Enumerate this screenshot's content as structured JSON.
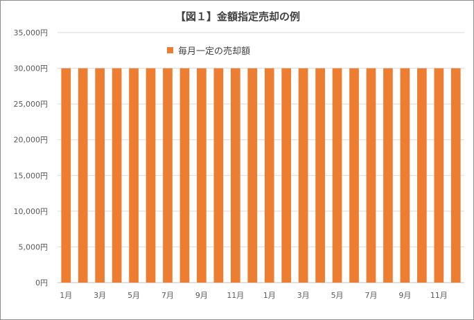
{
  "chart_data": {
    "type": "bar",
    "title": "【図１】金額指定売却の例",
    "xlabel": "",
    "ylabel": "",
    "ylim": [
      0,
      35000
    ],
    "yticks": [
      0,
      5000,
      10000,
      15000,
      20000,
      25000,
      30000,
      35000
    ],
    "ytick_labels": [
      "0円",
      "5,000円",
      "10,000円",
      "15,000円",
      "20,000円",
      "25,000円",
      "30,000円",
      "35,000円"
    ],
    "categories": [
      "1月",
      "2月",
      "3月",
      "4月",
      "5月",
      "6月",
      "7月",
      "8月",
      "9月",
      "10月",
      "11月",
      "12月",
      "1月",
      "2月",
      "3月",
      "4月",
      "5月",
      "6月",
      "7月",
      "8月",
      "9月",
      "10月",
      "11月",
      "12月"
    ],
    "visible_xtick_labels": [
      "1月",
      "",
      "3月",
      "",
      "5月",
      "",
      "7月",
      "",
      "9月",
      "",
      "11月",
      "",
      "1月",
      "",
      "3月",
      "",
      "5月",
      "",
      "7月",
      "",
      "9月",
      "",
      "11月",
      ""
    ],
    "series": [
      {
        "name": "毎月一定の売却額",
        "color": "#ed7d31",
        "values": [
          30000,
          30000,
          30000,
          30000,
          30000,
          30000,
          30000,
          30000,
          30000,
          30000,
          30000,
          30000,
          30000,
          30000,
          30000,
          30000,
          30000,
          30000,
          30000,
          30000,
          30000,
          30000,
          30000,
          30000
        ]
      }
    ],
    "grid": true,
    "legend_position": "top"
  }
}
